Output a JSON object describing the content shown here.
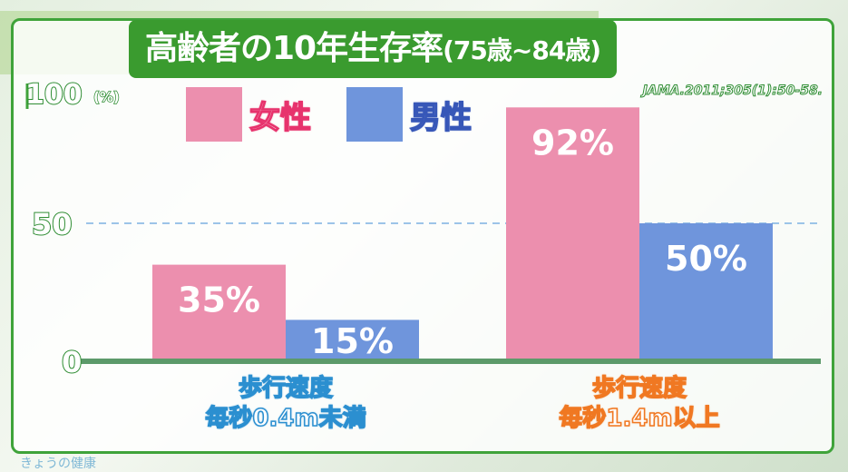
{
  "title": "高齢者の10年生存率",
  "title_paren": "(75歳~84歳)",
  "source": "JAMA.2011;305(1):50-58.",
  "logo_text": "きょうの健康",
  "colors": {
    "female": "#ec8fae",
    "male": "#6f95dc",
    "frame": "#3fa33a",
    "female_text": "#e7336d",
    "male_text": "#3757b8",
    "group1_text": "#2b8fd0",
    "group2_text": "#f07822"
  },
  "chart_data": {
    "type": "bar",
    "title": "高齢者の10年生存率(75歳~84歳)",
    "ylabel": "(%)",
    "ylim": [
      0,
      100
    ],
    "yticks": [
      "0",
      "50",
      "100"
    ],
    "reference_line": 50,
    "legend": "top-left",
    "categories": [
      "歩行速度 毎秒0.4m未満",
      "歩行速度 毎秒1.4m以上"
    ],
    "category_lines": [
      [
        "歩行速度",
        "毎秒0.4m未満"
      ],
      [
        "歩行速度",
        "毎秒1.4m以上"
      ]
    ],
    "series": [
      {
        "name": "女性",
        "values": [
          35,
          92
        ],
        "labels": [
          "35%",
          "92%"
        ]
      },
      {
        "name": "男性",
        "values": [
          15,
          50
        ],
        "labels": [
          "15%",
          "50%"
        ]
      }
    ]
  }
}
